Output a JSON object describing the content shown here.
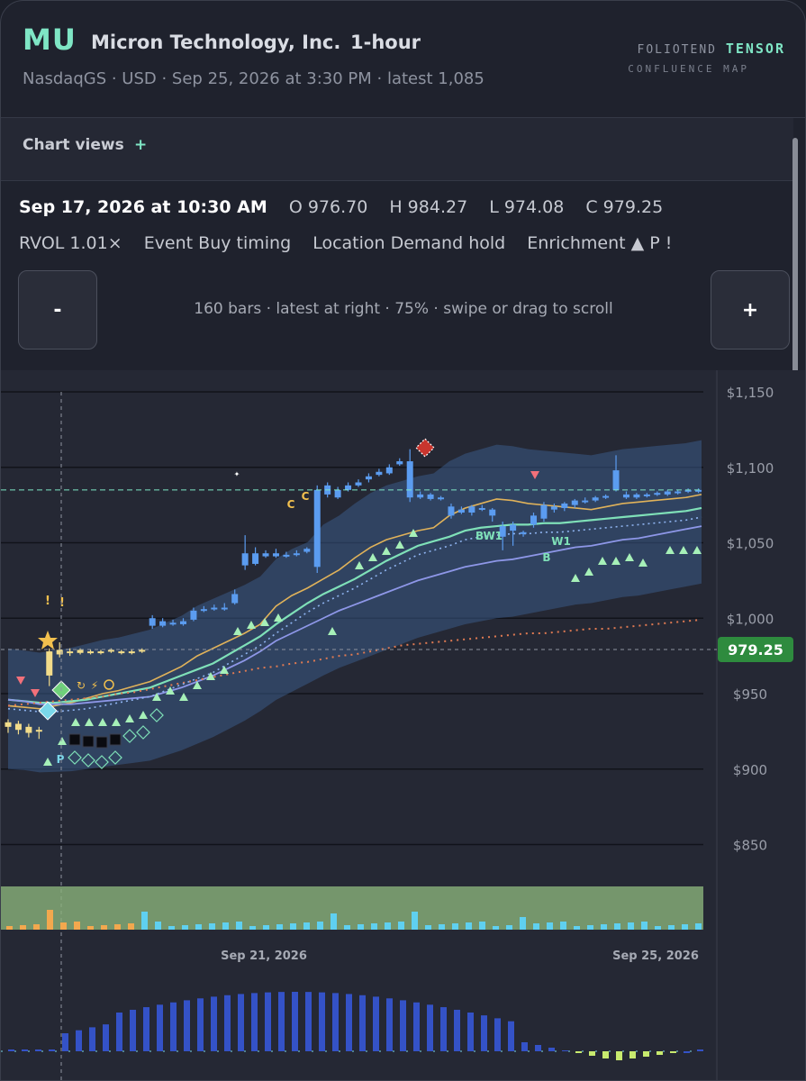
{
  "header": {
    "ticker": "MU",
    "company": "Micron Technology, Inc.",
    "timeframe": "1-hour",
    "subtitle": "NasdaqGS · USD · Sep 25, 2026 at 3:30 PM · latest 1,085",
    "brand_prefix": "FOLIOTEND",
    "brand_name": "TENSOR",
    "brand_sub": "CONFLUENCE MAP"
  },
  "views": {
    "label": "Chart views",
    "add_icon": "+"
  },
  "ohlc": {
    "date": "Sep 17, 2026 at 10:30 AM",
    "open": "O 976.70",
    "high": "H 984.27",
    "low": "L 974.08",
    "close": "C 979.25"
  },
  "meta": {
    "rvol": "RVOL 1.01×",
    "event": "Event Buy timing",
    "location": "Location Demand hold",
    "enrichment": "Enrichment ▲ P !"
  },
  "zoom": {
    "minus": "-",
    "plus": "+",
    "info": "160 bars · latest at right · 75% · swipe or drag to scroll"
  },
  "chart_data": {
    "type": "candlestick",
    "y_axis_labels": [
      "$1,150",
      "$1,100",
      "$1,050",
      "$1,000",
      "$950",
      "$900",
      "$850"
    ],
    "ylim": [
      830,
      1150
    ],
    "price_tag": "979.25",
    "x_axis_labels": [
      "Sep 21, 2026",
      "Sep 25, 2026"
    ],
    "signal_labels": [
      "C",
      "C",
      "BW1",
      "W1",
      "B",
      "P"
    ],
    "grid": true,
    "colors": {
      "up": "#5b9cf0",
      "down": "#5b9cf0",
      "selected": "#f2dc8a",
      "price_tag": "#2e8b3e",
      "band": "#3a5a87",
      "volume_panel": "#8ab27a"
    },
    "series": [
      {
        "name": "fast",
        "values": [
          942,
          941,
          940,
          942,
          944,
          947,
          950,
          952,
          955,
          958,
          963,
          968,
          975,
          980,
          985,
          990,
          996,
          1008,
          1015,
          1020,
          1026,
          1032,
          1040,
          1047,
          1052,
          1055,
          1058,
          1060,
          1068,
          1073,
          1076,
          1079,
          1078,
          1076,
          1075,
          1074,
          1073,
          1072,
          1074,
          1076,
          1077,
          1078,
          1079,
          1080,
          1082
        ]
      },
      {
        "name": "mid",
        "values": [
          946,
          945,
          944,
          944,
          945,
          946,
          948,
          950,
          952,
          954,
          958,
          962,
          966,
          970,
          976,
          982,
          988,
          996,
          1003,
          1010,
          1016,
          1021,
          1026,
          1032,
          1038,
          1043,
          1048,
          1051,
          1054,
          1058,
          1060,
          1061,
          1062,
          1062,
          1063,
          1063,
          1064,
          1065,
          1066,
          1067,
          1068,
          1069,
          1070,
          1071,
          1073
        ]
      },
      {
        "name": "slow",
        "values": [
          946,
          945,
          943,
          943,
          943,
          944,
          945,
          946,
          947,
          948,
          951,
          954,
          958,
          962,
          967,
          972,
          978,
          985,
          990,
          995,
          1000,
          1005,
          1009,
          1013,
          1017,
          1021,
          1025,
          1028,
          1031,
          1034,
          1036,
          1038,
          1039,
          1041,
          1043,
          1045,
          1047,
          1048,
          1050,
          1052,
          1053,
          1055,
          1057,
          1059,
          1061
        ]
      },
      {
        "name": "trend",
        "values": [
          942,
          943,
          944,
          945,
          946,
          947,
          948,
          950,
          951,
          953,
          955,
          957,
          959,
          961,
          963,
          965,
          967,
          968,
          970,
          971,
          973,
          975,
          976,
          978,
          980,
          982,
          983,
          984,
          985,
          986,
          987,
          988,
          989,
          990,
          990,
          991,
          992,
          993,
          993,
          994,
          995,
          996,
          997,
          998,
          999
        ]
      }
    ],
    "candles": [
      [
        928,
        931,
        924,
        933
      ],
      [
        930,
        926,
        923,
        932
      ],
      [
        924,
        928,
        921,
        930
      ],
      [
        926,
        925,
        920,
        928
      ],
      [
        962,
        978,
        955,
        980
      ],
      [
        976,
        979,
        974,
        984
      ],
      [
        978,
        977,
        975,
        980
      ],
      [
        977,
        979,
        976,
        980
      ],
      [
        978,
        977,
        976,
        979
      ],
      [
        977,
        978,
        976,
        979
      ],
      [
        978,
        979,
        977,
        980
      ],
      [
        978,
        977,
        976,
        979
      ],
      [
        977,
        978,
        976,
        979
      ],
      [
        978,
        979,
        977,
        980
      ],
      [
        1000,
        995,
        993,
        1002
      ],
      [
        995,
        998,
        994,
        1000
      ],
      [
        997,
        996,
        995,
        999
      ],
      [
        996,
        998,
        995,
        1000
      ],
      [
        999,
        1005,
        998,
        1007
      ],
      [
        1005,
        1006,
        1004,
        1008
      ],
      [
        1006,
        1007,
        1005,
        1009
      ],
      [
        1006,
        1007,
        1005,
        1010
      ],
      [
        1010,
        1016,
        1009,
        1019
      ],
      [
        1035,
        1043,
        1032,
        1055
      ],
      [
        1036,
        1043,
        1035,
        1047
      ],
      [
        1043,
        1041,
        1040,
        1045
      ],
      [
        1041,
        1043,
        1040,
        1046
      ],
      [
        1042,
        1041,
        1040,
        1044
      ],
      [
        1042,
        1043,
        1041,
        1045
      ],
      [
        1044,
        1046,
        1043,
        1047
      ],
      [
        1034,
        1085,
        1030,
        1088
      ],
      [
        1088,
        1082,
        1080,
        1090
      ],
      [
        1080,
        1085,
        1079,
        1087
      ],
      [
        1085,
        1088,
        1084,
        1090
      ],
      [
        1088,
        1090,
        1087,
        1092
      ],
      [
        1092,
        1094,
        1090,
        1096
      ],
      [
        1095,
        1097,
        1094,
        1099
      ],
      [
        1096,
        1100,
        1095,
        1102
      ],
      [
        1102,
        1104,
        1101,
        1106
      ],
      [
        1104,
        1080,
        1077,
        1112
      ],
      [
        1080,
        1082,
        1079,
        1084
      ],
      [
        1082,
        1079,
        1078,
        1083
      ],
      [
        1079,
        1080,
        1078,
        1081
      ],
      [
        1074,
        1068,
        1066,
        1076
      ],
      [
        1070,
        1072,
        1069,
        1074
      ],
      [
        1070,
        1074,
        1068,
        1075
      ],
      [
        1072,
        1073,
        1071,
        1075
      ],
      [
        1068,
        1072,
        1064,
        1073
      ],
      [
        1054,
        1061,
        1045,
        1064
      ],
      [
        1062,
        1058,
        1048,
        1064
      ],
      [
        1056,
        1057,
        1054,
        1058
      ],
      [
        1062,
        1068,
        1060,
        1070
      ],
      [
        1066,
        1075,
        1064,
        1077
      ],
      [
        1072,
        1074,
        1070,
        1076
      ],
      [
        1073,
        1076,
        1071,
        1077
      ],
      [
        1075,
        1078,
        1073,
        1079
      ],
      [
        1077,
        1078,
        1076,
        1080
      ],
      [
        1078,
        1080,
        1077,
        1081
      ],
      [
        1080,
        1081,
        1079,
        1082
      ],
      [
        1085,
        1098,
        1084,
        1108
      ],
      [
        1082,
        1080,
        1079,
        1084
      ],
      [
        1080,
        1082,
        1079,
        1083
      ],
      [
        1081,
        1082,
        1080,
        1083
      ],
      [
        1082,
        1083,
        1081,
        1084
      ],
      [
        1082,
        1084,
        1081,
        1085
      ],
      [
        1083,
        1084,
        1082,
        1085
      ],
      [
        1084,
        1085,
        1083,
        1086
      ],
      [
        1084,
        1085,
        1083,
        1086
      ]
    ]
  }
}
